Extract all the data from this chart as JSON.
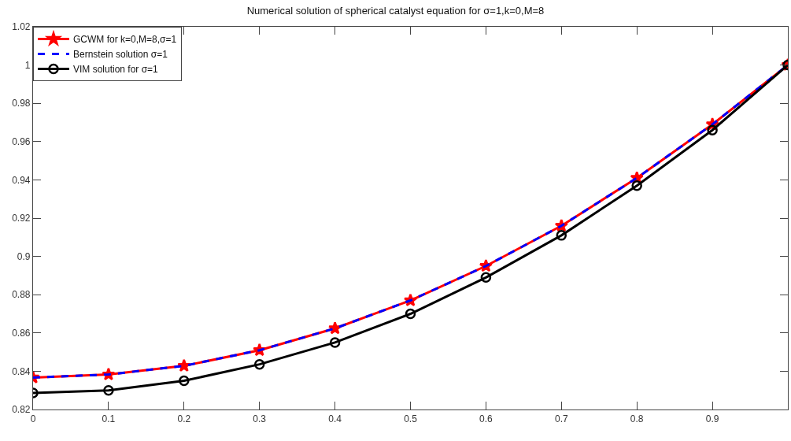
{
  "chart_data": {
    "type": "line",
    "title": "Numerical solution of spherical catalyst equation for σ=1,k=0,M=8",
    "x": [
      0,
      0.1,
      0.2,
      0.3,
      0.4,
      0.5,
      0.6,
      0.7,
      0.8,
      0.9,
      1
    ],
    "series": [
      {
        "name": "GCWM for k=0,M=8,σ=1",
        "color": "#ff0000",
        "marker": "star",
        "line_style": "solid",
        "values": [
          0.8367,
          0.8383,
          0.8428,
          0.851,
          0.8624,
          0.877,
          0.895,
          0.916,
          0.941,
          0.969,
          1.0
        ]
      },
      {
        "name": "Bernstein solution σ=1",
        "color": "#0000ff",
        "marker": "none",
        "line_style": "dashed",
        "values": [
          0.8367,
          0.8383,
          0.8428,
          0.851,
          0.8624,
          0.877,
          0.895,
          0.916,
          0.941,
          0.969,
          1.0
        ]
      },
      {
        "name": "VIM solution for σ=1",
        "color": "#000000",
        "marker": "circle",
        "line_style": "solid",
        "values": [
          0.8286,
          0.83,
          0.835,
          0.8436,
          0.855,
          0.87,
          0.889,
          0.911,
          0.937,
          0.966,
          1.0
        ]
      }
    ],
    "xlim": [
      0,
      1
    ],
    "xticks": [
      0,
      0.1,
      0.2,
      0.3,
      0.4,
      0.5,
      0.6,
      0.7,
      0.8,
      0.9,
      {
        "value": 1,
        "label": null
      }
    ],
    "ylim": [
      0.82,
      1.02
    ],
    "yticks": [
      0.82,
      0.84,
      0.86,
      0.88,
      0.9,
      0.92,
      0.94,
      0.96,
      0.98,
      1,
      1.02
    ],
    "grid": false,
    "legend": "top left"
  }
}
